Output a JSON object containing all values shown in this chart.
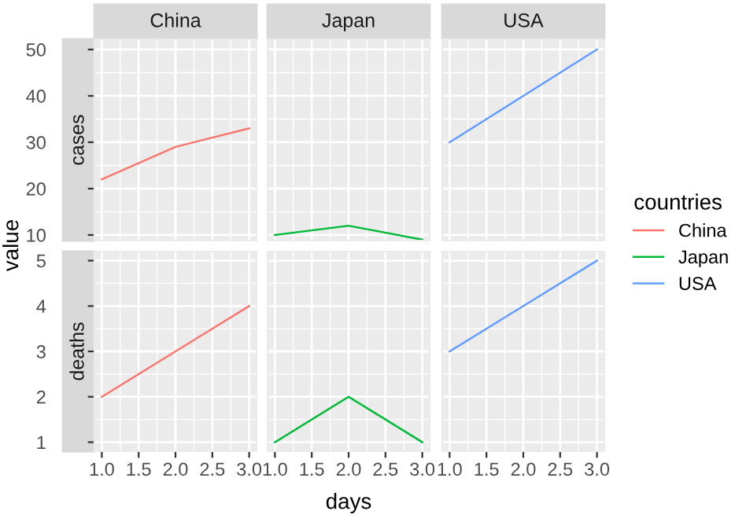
{
  "chart_data": [
    {
      "type": "line",
      "title": "China",
      "ylabel": "cases",
      "annotations": [
        "value"
      ],
      "x": [
        1,
        2,
        3
      ],
      "series": [
        {
          "name": "China",
          "color": "#f8766d",
          "values": [
            22,
            29,
            33
          ]
        }
      ],
      "xlim": [
        0.9,
        3.1
      ],
      "xticks": [
        {
          "value": 1.0,
          "label": null
        },
        {
          "value": 1.5,
          "label": null
        },
        {
          "value": 2.0,
          "label": null
        },
        {
          "value": 2.5,
          "label": null
        },
        {
          "value": 3.0,
          "label": null
        }
      ],
      "ylim": [
        8.8,
        52.2
      ],
      "yticks": [
        10,
        20,
        30,
        40,
        50
      ],
      "grid": true,
      "tick_labels": "y"
    },
    {
      "type": "line",
      "title": "Japan",
      "x": [
        1,
        2,
        3
      ],
      "series": [
        {
          "name": "Japan",
          "color": "#00ba38",
          "values": [
            10,
            12,
            9
          ]
        }
      ],
      "xlim": [
        0.9,
        3.1
      ],
      "xticks": [
        {
          "value": 1.0,
          "label": null
        },
        {
          "value": 1.5,
          "label": null
        },
        {
          "value": 2.0,
          "label": null
        },
        {
          "value": 2.5,
          "label": null
        },
        {
          "value": 3.0,
          "label": null
        }
      ],
      "ylim": [
        8.8,
        52.2
      ],
      "yticks": [
        {
          "value": 10,
          "label": null
        },
        {
          "value": 20,
          "label": null
        },
        {
          "value": 30,
          "label": null
        },
        {
          "value": 40,
          "label": null
        },
        {
          "value": 50,
          "label": null
        }
      ],
      "grid": true,
      "tick_labels": false
    },
    {
      "type": "line",
      "title": "USA",
      "legend": "right",
      "legend_title": "countries",
      "x": [
        1,
        2,
        3
      ],
      "series": [
        {
          "name": "USA",
          "color": "#619cff",
          "values": [
            30,
            40,
            50
          ]
        }
      ],
      "xlim": [
        0.9,
        3.1
      ],
      "xticks": [
        {
          "value": 1.0,
          "label": null
        },
        {
          "value": 1.5,
          "label": null
        },
        {
          "value": 2.0,
          "label": null
        },
        {
          "value": 2.5,
          "label": null
        },
        {
          "value": 3.0,
          "label": null
        }
      ],
      "ylim": [
        8.8,
        52.2
      ],
      "yticks": [
        {
          "value": 10,
          "label": null
        },
        {
          "value": 20,
          "label": null
        },
        {
          "value": 30,
          "label": null
        },
        {
          "value": 40,
          "label": null
        },
        {
          "value": 50,
          "label": null
        }
      ],
      "grid": true,
      "tick_labels": false
    },
    {
      "type": "line",
      "ylabel": "deaths",
      "x": [
        1,
        2,
        3
      ],
      "series": [
        {
          "color": "#f8766d",
          "values": [
            2,
            3,
            4
          ]
        }
      ],
      "xlim": [
        0.9,
        3.1
      ],
      "xticks": [
        {
          "value": 1.0,
          "label": "1.0"
        },
        {
          "value": 1.5,
          "label": "1.5"
        },
        {
          "value": 2.0,
          "label": "2.0"
        },
        {
          "value": 2.5,
          "label": "2.5"
        },
        {
          "value": 3.0,
          "label": "3.0"
        }
      ],
      "ylim": [
        0.8,
        5.2
      ],
      "yticks": [
        1,
        2,
        3,
        4,
        5
      ],
      "grid": true
    },
    {
      "type": "line",
      "xlabel": "days",
      "x": [
        1,
        2,
        3
      ],
      "series": [
        {
          "color": "#00ba38",
          "values": [
            1,
            2,
            1
          ]
        }
      ],
      "xlim": [
        0.9,
        3.1
      ],
      "xticks": [
        {
          "value": 1.0,
          "label": "1.0"
        },
        {
          "value": 1.5,
          "label": "1.5"
        },
        {
          "value": 2.0,
          "label": "2.0"
        },
        {
          "value": 2.5,
          "label": "2.5"
        },
        {
          "value": 3.0,
          "label": "3.0"
        }
      ],
      "ylim": [
        0.8,
        5.2
      ],
      "yticks": [
        {
          "value": 1,
          "label": null
        },
        {
          "value": 2,
          "label": null
        },
        {
          "value": 3,
          "label": null
        },
        {
          "value": 4,
          "label": null
        },
        {
          "value": 5,
          "label": null
        }
      ],
      "grid": true,
      "tick_labels": "x"
    },
    {
      "type": "line",
      "x": [
        1,
        2,
        3
      ],
      "series": [
        {
          "color": "#619cff",
          "values": [
            3,
            4,
            5
          ]
        }
      ],
      "xlim": [
        0.9,
        3.1
      ],
      "xticks": [
        {
          "value": 1.0,
          "label": "1.0"
        },
        {
          "value": 1.5,
          "label": "1.5"
        },
        {
          "value": 2.0,
          "label": "2.0"
        },
        {
          "value": 2.5,
          "label": "2.5"
        },
        {
          "value": 3.0,
          "label": "3.0"
        }
      ],
      "ylim": [
        0.8,
        5.2
      ],
      "yticks": [
        {
          "value": 1,
          "label": null
        },
        {
          "value": 2,
          "label": null
        },
        {
          "value": 3,
          "label": null
        },
        {
          "value": 4,
          "label": null
        },
        {
          "value": 5,
          "label": null
        }
      ],
      "grid": true,
      "tick_labels": "x"
    }
  ]
}
